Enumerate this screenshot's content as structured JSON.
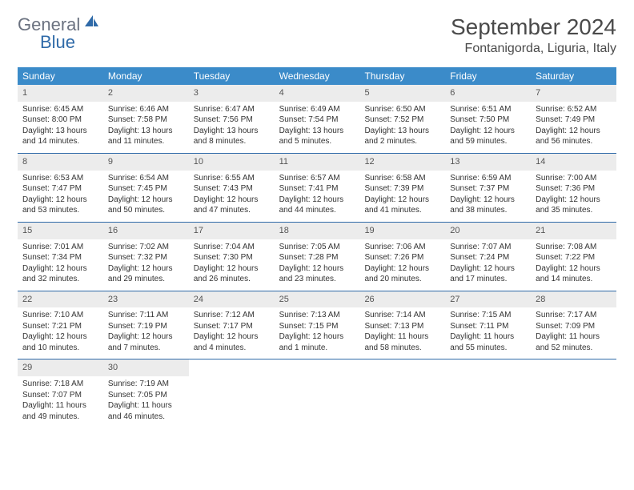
{
  "logo": {
    "text1": "General",
    "text2": "Blue"
  },
  "title": "September 2024",
  "location": "Fontanigorda, Liguria, Italy",
  "colors": {
    "header_bg": "#3b8bc9",
    "header_text": "#ffffff",
    "daynum_bg": "#ececec",
    "week_border": "#2f6aa8",
    "logo_gray": "#6b7280",
    "logo_blue": "#2f6aa8"
  },
  "days_of_week": [
    "Sunday",
    "Monday",
    "Tuesday",
    "Wednesday",
    "Thursday",
    "Friday",
    "Saturday"
  ],
  "weeks": [
    [
      {
        "n": "1",
        "sunrise": "Sunrise: 6:45 AM",
        "sunset": "Sunset: 8:00 PM",
        "daylight": "Daylight: 13 hours and 14 minutes."
      },
      {
        "n": "2",
        "sunrise": "Sunrise: 6:46 AM",
        "sunset": "Sunset: 7:58 PM",
        "daylight": "Daylight: 13 hours and 11 minutes."
      },
      {
        "n": "3",
        "sunrise": "Sunrise: 6:47 AM",
        "sunset": "Sunset: 7:56 PM",
        "daylight": "Daylight: 13 hours and 8 minutes."
      },
      {
        "n": "4",
        "sunrise": "Sunrise: 6:49 AM",
        "sunset": "Sunset: 7:54 PM",
        "daylight": "Daylight: 13 hours and 5 minutes."
      },
      {
        "n": "5",
        "sunrise": "Sunrise: 6:50 AM",
        "sunset": "Sunset: 7:52 PM",
        "daylight": "Daylight: 13 hours and 2 minutes."
      },
      {
        "n": "6",
        "sunrise": "Sunrise: 6:51 AM",
        "sunset": "Sunset: 7:50 PM",
        "daylight": "Daylight: 12 hours and 59 minutes."
      },
      {
        "n": "7",
        "sunrise": "Sunrise: 6:52 AM",
        "sunset": "Sunset: 7:49 PM",
        "daylight": "Daylight: 12 hours and 56 minutes."
      }
    ],
    [
      {
        "n": "8",
        "sunrise": "Sunrise: 6:53 AM",
        "sunset": "Sunset: 7:47 PM",
        "daylight": "Daylight: 12 hours and 53 minutes."
      },
      {
        "n": "9",
        "sunrise": "Sunrise: 6:54 AM",
        "sunset": "Sunset: 7:45 PM",
        "daylight": "Daylight: 12 hours and 50 minutes."
      },
      {
        "n": "10",
        "sunrise": "Sunrise: 6:55 AM",
        "sunset": "Sunset: 7:43 PM",
        "daylight": "Daylight: 12 hours and 47 minutes."
      },
      {
        "n": "11",
        "sunrise": "Sunrise: 6:57 AM",
        "sunset": "Sunset: 7:41 PM",
        "daylight": "Daylight: 12 hours and 44 minutes."
      },
      {
        "n": "12",
        "sunrise": "Sunrise: 6:58 AM",
        "sunset": "Sunset: 7:39 PM",
        "daylight": "Daylight: 12 hours and 41 minutes."
      },
      {
        "n": "13",
        "sunrise": "Sunrise: 6:59 AM",
        "sunset": "Sunset: 7:37 PM",
        "daylight": "Daylight: 12 hours and 38 minutes."
      },
      {
        "n": "14",
        "sunrise": "Sunrise: 7:00 AM",
        "sunset": "Sunset: 7:36 PM",
        "daylight": "Daylight: 12 hours and 35 minutes."
      }
    ],
    [
      {
        "n": "15",
        "sunrise": "Sunrise: 7:01 AM",
        "sunset": "Sunset: 7:34 PM",
        "daylight": "Daylight: 12 hours and 32 minutes."
      },
      {
        "n": "16",
        "sunrise": "Sunrise: 7:02 AM",
        "sunset": "Sunset: 7:32 PM",
        "daylight": "Daylight: 12 hours and 29 minutes."
      },
      {
        "n": "17",
        "sunrise": "Sunrise: 7:04 AM",
        "sunset": "Sunset: 7:30 PM",
        "daylight": "Daylight: 12 hours and 26 minutes."
      },
      {
        "n": "18",
        "sunrise": "Sunrise: 7:05 AM",
        "sunset": "Sunset: 7:28 PM",
        "daylight": "Daylight: 12 hours and 23 minutes."
      },
      {
        "n": "19",
        "sunrise": "Sunrise: 7:06 AM",
        "sunset": "Sunset: 7:26 PM",
        "daylight": "Daylight: 12 hours and 20 minutes."
      },
      {
        "n": "20",
        "sunrise": "Sunrise: 7:07 AM",
        "sunset": "Sunset: 7:24 PM",
        "daylight": "Daylight: 12 hours and 17 minutes."
      },
      {
        "n": "21",
        "sunrise": "Sunrise: 7:08 AM",
        "sunset": "Sunset: 7:22 PM",
        "daylight": "Daylight: 12 hours and 14 minutes."
      }
    ],
    [
      {
        "n": "22",
        "sunrise": "Sunrise: 7:10 AM",
        "sunset": "Sunset: 7:21 PM",
        "daylight": "Daylight: 12 hours and 10 minutes."
      },
      {
        "n": "23",
        "sunrise": "Sunrise: 7:11 AM",
        "sunset": "Sunset: 7:19 PM",
        "daylight": "Daylight: 12 hours and 7 minutes."
      },
      {
        "n": "24",
        "sunrise": "Sunrise: 7:12 AM",
        "sunset": "Sunset: 7:17 PM",
        "daylight": "Daylight: 12 hours and 4 minutes."
      },
      {
        "n": "25",
        "sunrise": "Sunrise: 7:13 AM",
        "sunset": "Sunset: 7:15 PM",
        "daylight": "Daylight: 12 hours and 1 minute."
      },
      {
        "n": "26",
        "sunrise": "Sunrise: 7:14 AM",
        "sunset": "Sunset: 7:13 PM",
        "daylight": "Daylight: 11 hours and 58 minutes."
      },
      {
        "n": "27",
        "sunrise": "Sunrise: 7:15 AM",
        "sunset": "Sunset: 7:11 PM",
        "daylight": "Daylight: 11 hours and 55 minutes."
      },
      {
        "n": "28",
        "sunrise": "Sunrise: 7:17 AM",
        "sunset": "Sunset: 7:09 PM",
        "daylight": "Daylight: 11 hours and 52 minutes."
      }
    ],
    [
      {
        "n": "29",
        "sunrise": "Sunrise: 7:18 AM",
        "sunset": "Sunset: 7:07 PM",
        "daylight": "Daylight: 11 hours and 49 minutes."
      },
      {
        "n": "30",
        "sunrise": "Sunrise: 7:19 AM",
        "sunset": "Sunset: 7:05 PM",
        "daylight": "Daylight: 11 hours and 46 minutes."
      },
      {
        "empty": true
      },
      {
        "empty": true
      },
      {
        "empty": true
      },
      {
        "empty": true
      },
      {
        "empty": true
      }
    ]
  ]
}
